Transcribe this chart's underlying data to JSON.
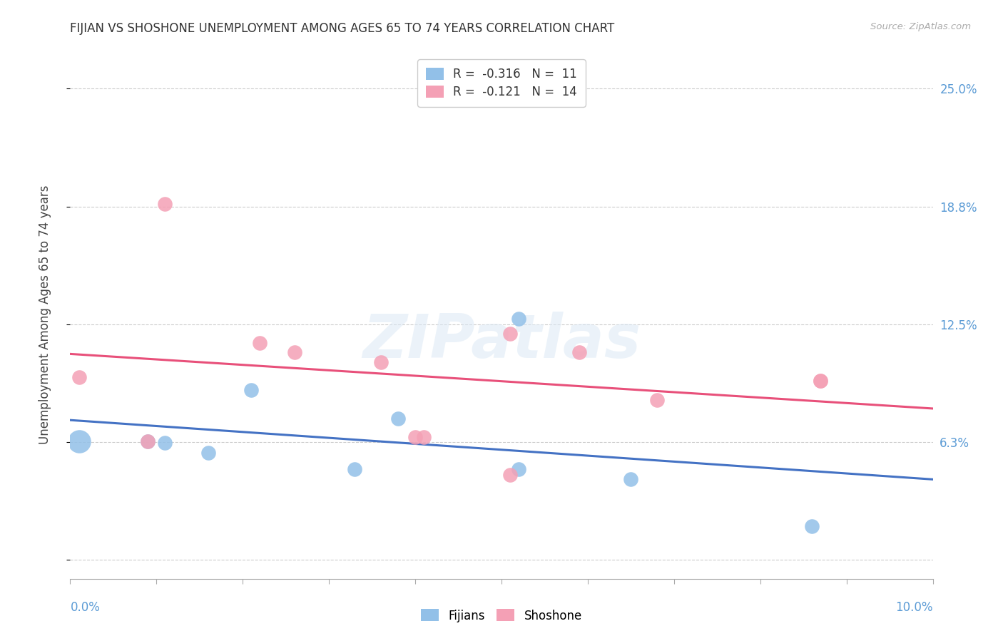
{
  "title": "FIJIAN VS SHOSHONE UNEMPLOYMENT AMONG AGES 65 TO 74 YEARS CORRELATION CHART",
  "source": "Source: ZipAtlas.com",
  "ylabel": "Unemployment Among Ages 65 to 74 years",
  "right_ytick_positions": [
    0.0,
    0.0625,
    0.125,
    0.1875,
    0.25
  ],
  "right_yticklabels": [
    "",
    "6.3%",
    "12.5%",
    "18.8%",
    "25.0%"
  ],
  "xlim": [
    0.0,
    0.1
  ],
  "ylim": [
    -0.01,
    0.27
  ],
  "fijians_x": [
    0.001,
    0.009,
    0.011,
    0.016,
    0.021,
    0.033,
    0.038,
    0.052,
    0.052,
    0.065,
    0.086
  ],
  "fijians_y": [
    0.063,
    0.063,
    0.062,
    0.057,
    0.09,
    0.048,
    0.075,
    0.128,
    0.048,
    0.043,
    0.018
  ],
  "shoshone_x": [
    0.001,
    0.009,
    0.011,
    0.022,
    0.026,
    0.036,
    0.051,
    0.051,
    0.059,
    0.068,
    0.087,
    0.087,
    0.041,
    0.04
  ],
  "shoshone_y": [
    0.097,
    0.063,
    0.189,
    0.115,
    0.11,
    0.105,
    0.12,
    0.045,
    0.11,
    0.085,
    0.095,
    0.095,
    0.065,
    0.065
  ],
  "fijians_color": "#92C0E8",
  "shoshone_color": "#F4A0B5",
  "fijians_trend_color": "#4472C4",
  "shoshone_trend_color": "#E8507A",
  "fijians_R": -0.316,
  "fijians_N": 11,
  "shoshone_R": -0.121,
  "shoshone_N": 14,
  "watermark": "ZIPatlas",
  "background_color": "#FFFFFF",
  "grid_color": "#CCCCCC",
  "right_axis_color": "#5B9BD5",
  "scatter_size": 220,
  "title_fontsize": 12,
  "axis_label_fontsize": 12,
  "tick_label_fontsize": 12
}
